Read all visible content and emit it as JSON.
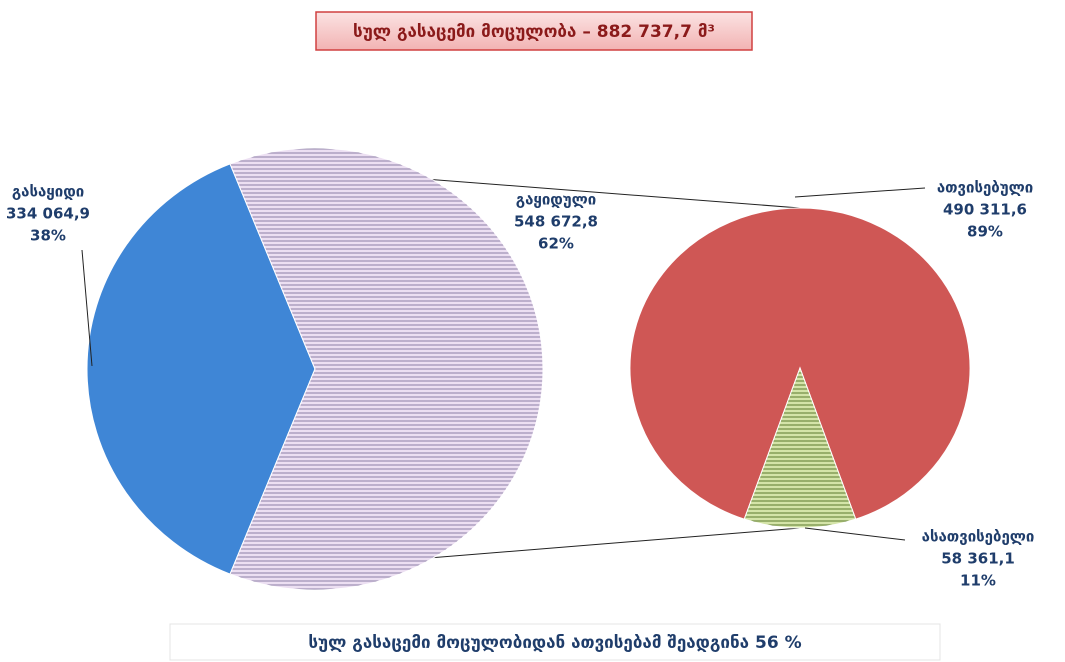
{
  "chart_data": {
    "type": "pie_of_pie",
    "title": "სულ გასაცემი მოცულობა – 882 737,7  მ³",
    "footer": "სულ გასაცემი მოცულობიდან ათვისებამ შეადგინა 56 %",
    "main": {
      "categories": [
        "გასაყიდი",
        "გაყიდული"
      ],
      "values": [
        334064.9,
        548672.8
      ],
      "value_labels": [
        "334 064,9",
        "548  672,8"
      ],
      "percents": [
        38,
        62
      ],
      "percent_labels": [
        "38%",
        "62%"
      ],
      "colors": [
        "#3f86d6",
        "#e6d6ee"
      ]
    },
    "sub": {
      "categories": [
        "ათვისებული",
        "ასათვისებელი"
      ],
      "values": [
        490311.6,
        58361.1
      ],
      "value_labels": [
        "490 311,6",
        "58 361,1"
      ],
      "percents": [
        89,
        11
      ],
      "percent_labels": [
        "89%",
        "11%"
      ],
      "colors": [
        "#cf5755",
        "#c9dc9c"
      ]
    }
  }
}
